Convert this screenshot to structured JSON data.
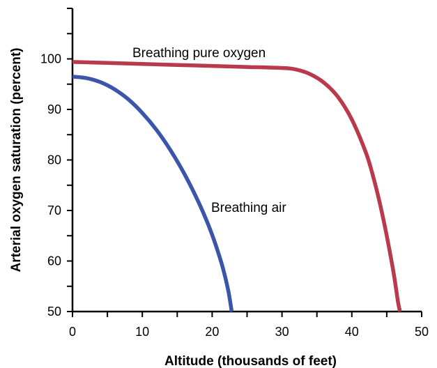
{
  "chart_data": {
    "type": "line",
    "title": "",
    "xlabel": "Altitude (thousands of feet)",
    "ylabel": "Arterial oxygen saturation (percent)",
    "xlim": [
      0,
      50
    ],
    "ylim": [
      50,
      110
    ],
    "x_ticks": [
      0,
      10,
      20,
      30,
      40,
      50
    ],
    "y_ticks": [
      50,
      60,
      70,
      80,
      90,
      100
    ],
    "grid": false,
    "legend": "none",
    "series": [
      {
        "name": "Breathing pure oxygen",
        "color": "#b93a4c",
        "points": [
          [
            0,
            99.4
          ],
          [
            5,
            99.2
          ],
          [
            10,
            99.0
          ],
          [
            15,
            98.8
          ],
          [
            20,
            98.6
          ],
          [
            25,
            98.4
          ],
          [
            30,
            98.2
          ],
          [
            32,
            97.9
          ],
          [
            34,
            97.0
          ],
          [
            36,
            95.3
          ],
          [
            38,
            92.5
          ],
          [
            40,
            88.0
          ],
          [
            42,
            81.5
          ],
          [
            43,
            77.0
          ],
          [
            44,
            71.5
          ],
          [
            45,
            65.0
          ],
          [
            46,
            57.5
          ],
          [
            46.6,
            52.0
          ],
          [
            46.9,
            50.0
          ]
        ]
      },
      {
        "name": "Breathing air",
        "color": "#3b56a8",
        "points": [
          [
            0,
            96.5
          ],
          [
            2,
            96.2
          ],
          [
            4,
            95.4
          ],
          [
            6,
            94.0
          ],
          [
            8,
            92.0
          ],
          [
            10,
            89.3
          ],
          [
            12,
            86.0
          ],
          [
            14,
            82.0
          ],
          [
            16,
            77.3
          ],
          [
            18,
            71.8
          ],
          [
            19.5,
            67.0
          ],
          [
            20.5,
            63.2
          ],
          [
            21.5,
            58.8
          ],
          [
            22.3,
            54.2
          ],
          [
            22.8,
            50.0
          ]
        ]
      }
    ]
  }
}
